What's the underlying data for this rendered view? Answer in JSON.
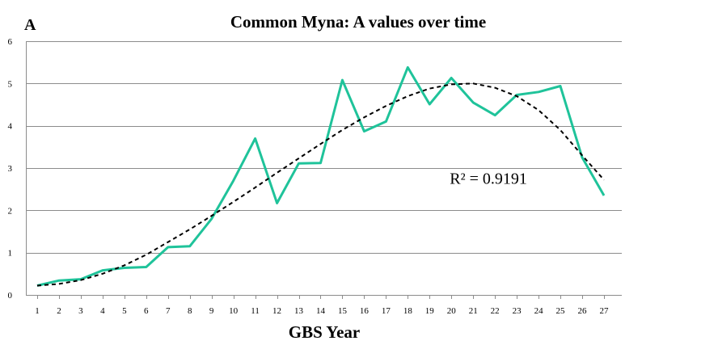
{
  "chart_data": {
    "type": "line",
    "panel_label": "A",
    "title": "Common Myna: A values over time",
    "xlabel": "GBS Year",
    "ylabel": "",
    "ylim": [
      0,
      6
    ],
    "y_ticks": [
      0,
      1,
      2,
      3,
      4,
      5,
      6
    ],
    "x": [
      1,
      2,
      3,
      4,
      5,
      6,
      7,
      8,
      9,
      10,
      11,
      12,
      13,
      14,
      15,
      16,
      17,
      18,
      19,
      20,
      21,
      22,
      23,
      24,
      25,
      26,
      27
    ],
    "grid": true,
    "legend": "none",
    "series": [
      {
        "color": "#1fc39a",
        "style": "solid",
        "values": [
          0.22,
          0.34,
          0.37,
          0.58,
          0.64,
          0.66,
          1.13,
          1.15,
          1.8,
          2.7,
          3.7,
          2.17,
          3.11,
          3.12,
          5.08,
          3.87,
          4.1,
          5.38,
          4.51,
          5.13,
          4.55,
          4.25,
          4.73,
          4.8,
          4.94,
          3.25,
          2.35
        ]
      },
      {
        "color": "#000000",
        "style": "dashed",
        "values": [
          0.22,
          0.26,
          0.35,
          0.5,
          0.7,
          0.95,
          1.25,
          1.55,
          1.87,
          2.2,
          2.54,
          2.89,
          3.23,
          3.57,
          3.9,
          4.2,
          4.47,
          4.7,
          4.88,
          4.98,
          5.0,
          4.9,
          4.7,
          4.37,
          3.9,
          3.3,
          2.72
        ]
      }
    ],
    "annotations": [
      {
        "text": "R² = 0.9191",
        "x": 21.7,
        "y": 2.63
      }
    ]
  }
}
